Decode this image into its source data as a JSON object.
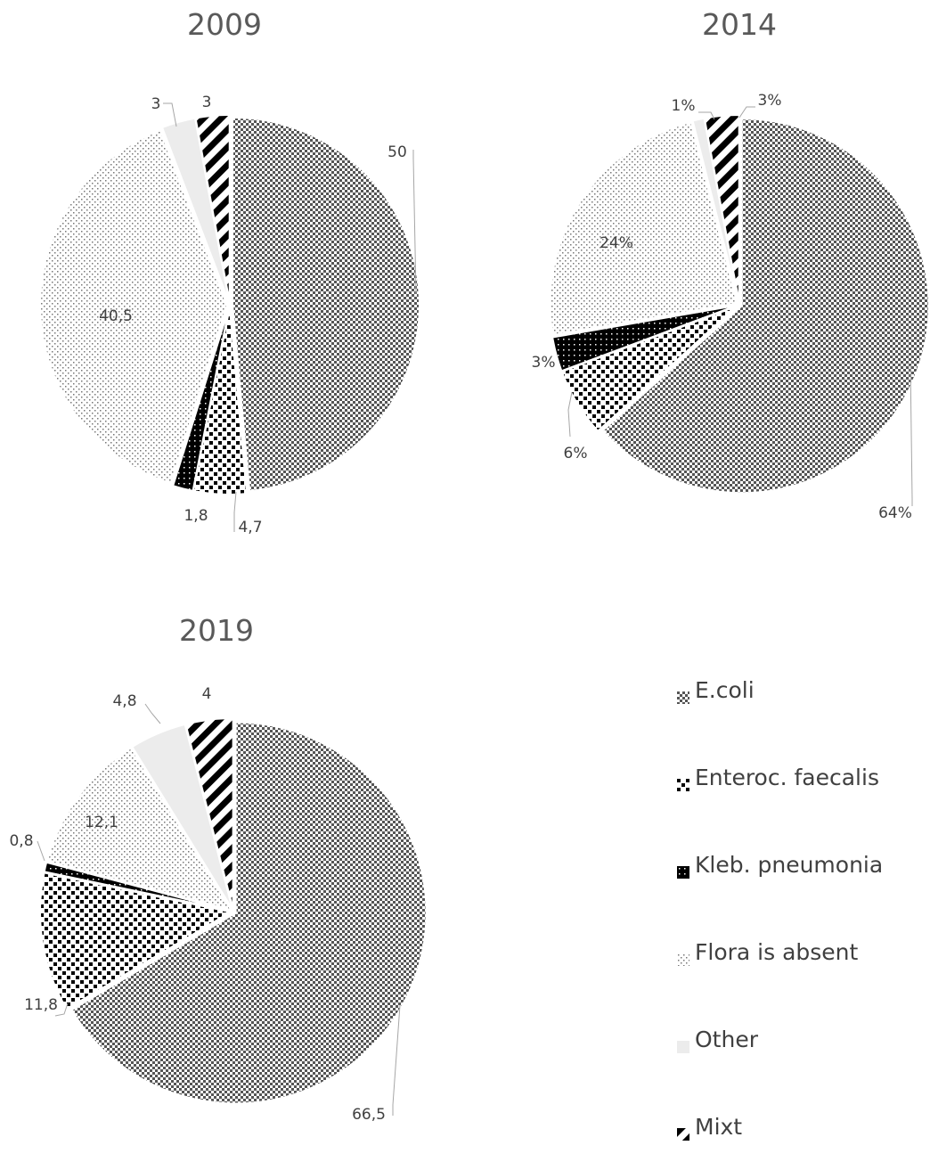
{
  "colors": {
    "ecoli": "#555555",
    "enteroc": "#000000",
    "kleb": "#000000",
    "flora": "#777777",
    "other": "#ececec",
    "mixt": "#000000"
  },
  "legend": [
    "E.coli",
    "Enteroc. faecalis",
    "Kleb. pneumonia",
    "Flora is absent",
    "Other",
    "Mixt"
  ],
  "chart_data": [
    {
      "type": "pie",
      "title": "2009",
      "categories": [
        "E.coli",
        "Enteroc. faecalis",
        "Kleb. pneumonia",
        "Flora is absent",
        "Other",
        "Mixt"
      ],
      "values": [
        50,
        4.7,
        1.8,
        40.5,
        3,
        3
      ],
      "labels": [
        "50",
        "4,7",
        "1,8",
        "40,5",
        "3",
        "3"
      ]
    },
    {
      "type": "pie",
      "title": "2014",
      "categories": [
        "E.coli",
        "Enteroc. faecalis",
        "Kleb. pneumonia",
        "Flora is absent",
        "Other",
        "Mixt"
      ],
      "values": [
        64,
        6,
        3,
        24,
        1,
        3
      ],
      "labels": [
        "64%",
        "6%",
        "3%",
        "24%",
        "1%",
        "3%"
      ]
    },
    {
      "type": "pie",
      "title": "2019",
      "categories": [
        "E.coli",
        "Enteroc. faecalis",
        "Kleb. pneumonia",
        "Flora is absent",
        "Other",
        "Mixt"
      ],
      "values": [
        66.5,
        11.8,
        0.8,
        12.1,
        4.8,
        4
      ],
      "labels": [
        "66,5",
        "11,8",
        "0,8",
        "12,1",
        "4,8",
        "4"
      ]
    }
  ]
}
